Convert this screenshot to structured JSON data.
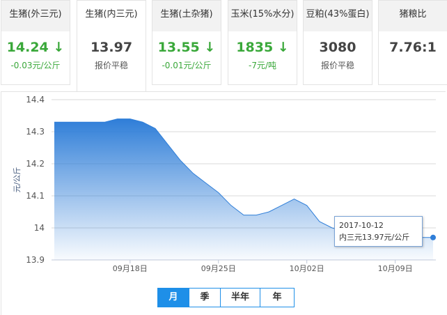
{
  "cards": [
    {
      "title": "生猪(外三元)",
      "value": "14.24",
      "arrow": "↓",
      "change": "-0.03元/公斤",
      "trend": "down"
    },
    {
      "title": "生猪(内三元)",
      "value": "13.97",
      "arrow": "",
      "change": "报价平稳",
      "trend": "flat",
      "active": true
    },
    {
      "title": "生猪(土杂猪)",
      "value": "13.55",
      "arrow": "↓",
      "change": "-0.01元/公斤",
      "trend": "down"
    },
    {
      "title": "玉米(15%水分)",
      "value": "1835",
      "arrow": "↓",
      "change": "-7元/吨",
      "trend": "down"
    },
    {
      "title": "豆粕(43%蛋白)",
      "value": "3080",
      "arrow": "",
      "change": "报价平稳",
      "trend": "flat"
    },
    {
      "title": "猪粮比",
      "value": "7.76:1",
      "arrow": "",
      "change": "",
      "trend": "flat"
    }
  ],
  "chart_data": {
    "type": "area",
    "ylabel": "元/公斤",
    "ylim": [
      13.9,
      14.4
    ],
    "yticks": [
      "14.4",
      "14.3",
      "14.2",
      "14.1",
      "14",
      "13.9"
    ],
    "xticks": [
      {
        "date": "2017-09-18",
        "label": "09月18日"
      },
      {
        "date": "2017-09-25",
        "label": "09月25日"
      },
      {
        "date": "2017-10-02",
        "label": "10月02日"
      },
      {
        "date": "2017-10-09",
        "label": "10月09日"
      }
    ],
    "x": [
      "2017-09-12",
      "2017-09-13",
      "2017-09-14",
      "2017-09-15",
      "2017-09-16",
      "2017-09-17",
      "2017-09-18",
      "2017-09-19",
      "2017-09-20",
      "2017-09-21",
      "2017-09-22",
      "2017-09-23",
      "2017-09-24",
      "2017-09-25",
      "2017-09-26",
      "2017-09-27",
      "2017-09-28",
      "2017-09-29",
      "2017-09-30",
      "2017-10-01",
      "2017-10-02",
      "2017-10-03",
      "2017-10-04",
      "2017-10-05",
      "2017-10-06",
      "2017-10-07",
      "2017-10-08",
      "2017-10-09",
      "2017-10-10",
      "2017-10-11",
      "2017-10-12"
    ],
    "series": [
      {
        "name": "内三元",
        "values": [
          14.33,
          14.33,
          14.33,
          14.33,
          14.33,
          14.34,
          14.34,
          14.33,
          14.31,
          14.26,
          14.21,
          14.17,
          14.14,
          14.11,
          14.07,
          14.04,
          14.04,
          14.05,
          14.07,
          14.09,
          14.07,
          14.02,
          14.0,
          13.99,
          13.98,
          13.97,
          13.97,
          13.97,
          13.97,
          13.97,
          13.97
        ]
      }
    ],
    "color": "#2f7ed8",
    "grid": true,
    "tooltip": {
      "date": "2017-10-12",
      "text": "内三元13.97元/公斤"
    }
  },
  "range_tabs": [
    {
      "label": "月",
      "active": true
    },
    {
      "label": "季"
    },
    {
      "label": "半年"
    },
    {
      "label": "年"
    }
  ]
}
